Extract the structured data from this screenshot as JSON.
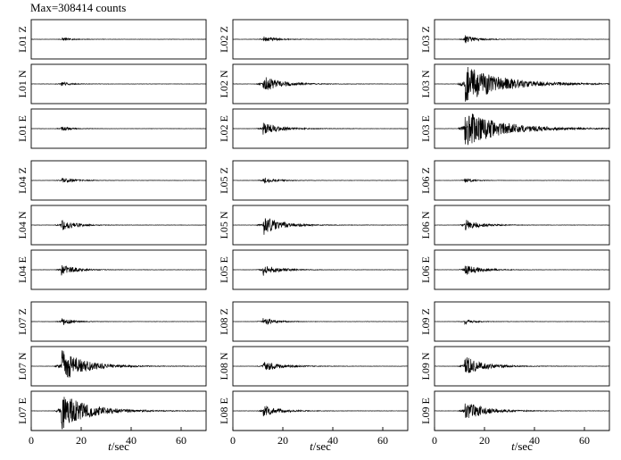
{
  "chart_data": {
    "type": "line",
    "title": "Max=308414 counts",
    "xlabel_italic": "t",
    "xlabel_unit": "/sec",
    "xlim": [
      0,
      70
    ],
    "xticks": [
      "0",
      "20",
      "40",
      "60"
    ],
    "columns": [
      {
        "panels": [
          {
            "label": "L01 Z",
            "amp": 0.1,
            "decay": 0.28
          },
          {
            "label": "L01 N",
            "amp": 0.13,
            "decay": 0.3
          },
          {
            "label": "L01 E",
            "amp": 0.13,
            "decay": 0.3
          },
          {
            "label": "L04 Z",
            "amp": 0.18,
            "decay": 0.22
          },
          {
            "label": "L04 N",
            "amp": 0.3,
            "decay": 0.2
          },
          {
            "label": "L04 E",
            "amp": 0.3,
            "decay": 0.2
          },
          {
            "label": "L07 Z",
            "amp": 0.2,
            "decay": 0.25
          },
          {
            "label": "L07 N",
            "amp": 0.9,
            "decay": 0.12
          },
          {
            "label": "L07 E",
            "amp": 0.98,
            "decay": 0.1
          }
        ]
      },
      {
        "panels": [
          {
            "label": "L02 Z",
            "amp": 0.18,
            "decay": 0.22
          },
          {
            "label": "L02 N",
            "amp": 0.45,
            "decay": 0.15
          },
          {
            "label": "L02 E",
            "amp": 0.32,
            "decay": 0.15
          },
          {
            "label": "L05 Z",
            "amp": 0.18,
            "decay": 0.22
          },
          {
            "label": "L05 N",
            "amp": 0.55,
            "decay": 0.16
          },
          {
            "label": "L05 E",
            "amp": 0.32,
            "decay": 0.18
          },
          {
            "label": "L08 Z",
            "amp": 0.22,
            "decay": 0.22
          },
          {
            "label": "L08 N",
            "amp": 0.28,
            "decay": 0.15
          },
          {
            "label": "L08 E",
            "amp": 0.3,
            "decay": 0.17
          }
        ]
      },
      {
        "panels": [
          {
            "label": "L03 Z",
            "amp": 0.22,
            "decay": 0.22
          },
          {
            "label": "L03 N",
            "amp": 1.0,
            "decay": 0.07
          },
          {
            "label": "L03 E",
            "amp": 0.95,
            "decay": 0.07
          },
          {
            "label": "L06 Z",
            "amp": 0.12,
            "decay": 0.28
          },
          {
            "label": "L06 N",
            "amp": 0.32,
            "decay": 0.18
          },
          {
            "label": "L06 E",
            "amp": 0.3,
            "decay": 0.17
          },
          {
            "label": "L09 Z",
            "amp": 0.15,
            "decay": 0.28
          },
          {
            "label": "L09 N",
            "amp": 0.55,
            "decay": 0.15
          },
          {
            "label": "L09 E",
            "amp": 0.55,
            "decay": 0.14
          }
        ]
      }
    ],
    "onset_time_sec": 12,
    "trace_color": "#000000",
    "frame_color": "#000000",
    "background": "#ffffff"
  }
}
